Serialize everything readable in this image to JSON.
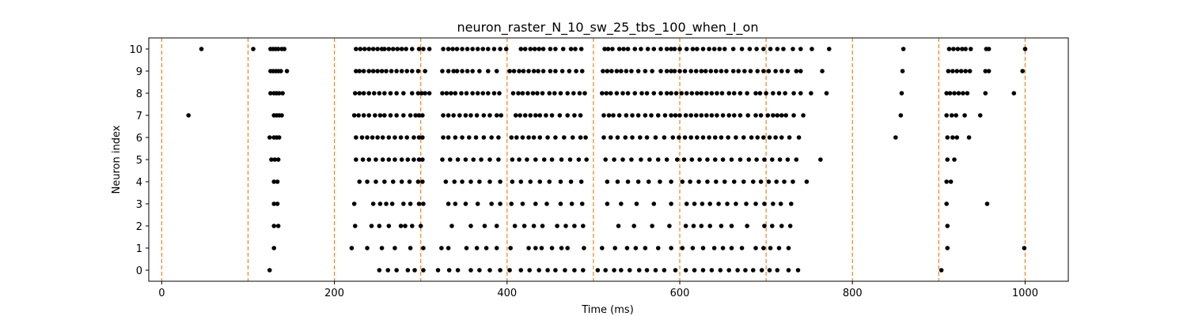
{
  "chart_data": {
    "type": "scatter",
    "title": "neuron_raster_N_10_sw_25_tbs_100_when_I_on",
    "xlabel": "Time (ms)",
    "ylabel": "Neuron index",
    "xlim": [
      -15,
      1050
    ],
    "ylim": [
      -0.5,
      10.5
    ],
    "xticks": [
      0,
      200,
      400,
      600,
      800,
      1000
    ],
    "yticks": [
      0,
      1,
      2,
      3,
      4,
      5,
      6,
      7,
      8,
      9,
      10
    ],
    "grid": false,
    "marker_color": "#000000",
    "vline_color": "#ff7f0e",
    "stimulus_onsets": [
      0,
      100,
      200,
      300,
      400,
      500,
      600,
      700,
      800,
      900,
      1000
    ],
    "spikes": {
      "10": [
        46,
        106,
        126,
        129,
        132,
        135,
        139,
        142,
        225,
        230,
        235,
        240,
        245,
        250,
        255,
        258,
        263,
        268,
        273,
        278,
        283,
        290,
        298,
        303,
        310,
        326,
        332,
        337,
        342,
        348,
        354,
        360,
        366,
        372,
        378,
        385,
        392,
        399,
        416,
        421,
        427,
        432,
        437,
        442,
        450,
        456,
        465,
        474,
        479,
        486,
        513,
        517,
        522,
        530,
        535,
        540,
        548,
        555,
        563,
        570,
        578,
        585,
        590,
        594,
        600,
        608,
        615,
        620,
        627,
        634,
        640,
        646,
        652,
        662,
        672,
        681,
        689,
        697,
        705,
        713,
        720,
        731,
        740,
        753,
        773,
        859,
        912,
        917,
        922,
        927,
        931,
        937,
        955,
        958,
        1000
      ],
      "9": [
        126,
        129,
        132,
        135,
        138,
        145,
        225,
        229,
        234,
        240,
        245,
        250,
        255,
        260,
        266,
        272,
        278,
        284,
        290,
        297,
        305,
        325,
        332,
        338,
        342,
        348,
        354,
        360,
        368,
        378,
        388,
        403,
        408,
        414,
        419,
        425,
        431,
        436,
        442,
        450,
        456,
        464,
        472,
        480,
        487,
        511,
        516,
        521,
        527,
        532,
        538,
        544,
        552,
        560,
        568,
        578,
        585,
        590,
        594,
        600,
        606,
        613,
        619,
        625,
        630,
        636,
        642,
        648,
        654,
        662,
        668,
        675,
        682,
        690,
        697,
        703,
        711,
        718,
        725,
        735,
        740,
        765,
        858,
        911,
        916,
        921,
        926,
        931,
        936,
        954,
        958,
        997
      ],
      "8": [
        126,
        130,
        133,
        136,
        140,
        224,
        229,
        234,
        240,
        246,
        252,
        258,
        265,
        272,
        280,
        290,
        297,
        301,
        305,
        310,
        325,
        330,
        335,
        340,
        347,
        353,
        360,
        366,
        372,
        378,
        385,
        391,
        407,
        413,
        418,
        424,
        430,
        435,
        441,
        449,
        455,
        462,
        470,
        477,
        484,
        490,
        510,
        515,
        520,
        527,
        534,
        540,
        548,
        556,
        562,
        570,
        578,
        585,
        590,
        596,
        602,
        608,
        614,
        620,
        625,
        631,
        637,
        643,
        649,
        657,
        663,
        670,
        678,
        688,
        693,
        700,
        708,
        715,
        722,
        732,
        740,
        752,
        770,
        857,
        909,
        913,
        918,
        923,
        928,
        933,
        954,
        987
      ],
      "7": [
        31,
        130,
        133,
        136,
        139,
        223,
        228,
        234,
        240,
        247,
        253,
        258,
        265,
        272,
        280,
        288,
        294,
        298,
        302,
        326,
        332,
        338,
        345,
        352,
        358,
        365,
        373,
        380,
        388,
        393,
        410,
        415,
        421,
        427,
        433,
        438,
        445,
        452,
        461,
        470,
        478,
        485,
        512,
        518,
        523,
        530,
        538,
        545,
        552,
        560,
        567,
        575,
        583,
        590,
        595,
        600,
        607,
        613,
        619,
        625,
        631,
        637,
        643,
        650,
        657,
        663,
        670,
        679,
        688,
        694,
        702,
        708,
        713,
        718,
        723,
        732,
        743,
        856,
        909,
        915,
        920,
        930,
        948
      ],
      "6": [
        125,
        130,
        133,
        136,
        225,
        232,
        238,
        244,
        250,
        256,
        263,
        270,
        277,
        284,
        292,
        298,
        302,
        326,
        332,
        340,
        348,
        356,
        364,
        373,
        382,
        390,
        405,
        411,
        418,
        425,
        431,
        438,
        447,
        456,
        466,
        476,
        485,
        491,
        512,
        520,
        528,
        537,
        545,
        554,
        562,
        572,
        582,
        592,
        599,
        606,
        613,
        620,
        627,
        634,
        641,
        648,
        656,
        665,
        674,
        683,
        690,
        697,
        704,
        711,
        718,
        727,
        738,
        850,
        910,
        916,
        921,
        935
      ],
      "5": [
        127,
        131,
        135,
        225,
        233,
        240,
        248,
        256,
        263,
        270,
        278,
        285,
        292,
        298,
        302,
        325,
        334,
        343,
        352,
        361,
        370,
        380,
        390,
        406,
        414,
        423,
        433,
        443,
        452,
        463,
        473,
        483,
        492,
        514,
        524,
        534,
        544,
        555,
        565,
        575,
        585,
        597,
        605,
        614,
        623,
        632,
        641,
        650,
        660,
        670,
        680,
        689,
        698,
        707,
        716,
        725,
        735,
        763,
        910,
        918
      ],
      "4": [
        130,
        134,
        229,
        238,
        248,
        258,
        268,
        278,
        287,
        297,
        302,
        329,
        339,
        348,
        358,
        368,
        380,
        392,
        406,
        416,
        427,
        438,
        449,
        462,
        474,
        486,
        516,
        528,
        540,
        552,
        564,
        577,
        590,
        603,
        612,
        622,
        632,
        642,
        652,
        663,
        674,
        685,
        694,
        703,
        712,
        721,
        731,
        747,
        909,
        914
      ],
      "3": [
        130,
        134,
        223,
        245,
        253,
        260,
        267,
        280,
        288,
        298,
        303,
        332,
        340,
        352,
        366,
        382,
        392,
        405,
        418,
        433,
        446,
        462,
        475,
        487,
        516,
        532,
        550,
        570,
        590,
        608,
        617,
        626,
        635,
        645,
        655,
        665,
        677,
        688,
        698,
        708,
        717,
        729,
        909,
        956
      ],
      "2": [
        130,
        135,
        224,
        243,
        252,
        263,
        277,
        282,
        290,
        300,
        336,
        358,
        374,
        388,
        409,
        420,
        431,
        441,
        458,
        468,
        478,
        488,
        529,
        547,
        568,
        588,
        607,
        616,
        625,
        635,
        648,
        660,
        678,
        698,
        707,
        718,
        728,
        910
      ],
      "1": [
        130,
        220,
        238,
        255,
        270,
        288,
        303,
        324,
        332,
        353,
        365,
        376,
        388,
        404,
        425,
        433,
        440,
        452,
        463,
        470,
        489,
        510,
        525,
        539,
        549,
        560,
        575,
        590,
        603,
        615,
        627,
        640,
        650,
        660,
        672,
        688,
        697,
        705,
        715,
        726,
        910,
        999
      ],
      "0": [
        125,
        252,
        262,
        272,
        285,
        293,
        303,
        320,
        333,
        343,
        358,
        368,
        380,
        392,
        403,
        416,
        426,
        437,
        447,
        456,
        467,
        478,
        488,
        505,
        514,
        524,
        532,
        542,
        553,
        562,
        572,
        582,
        595,
        607,
        617,
        627,
        637,
        647,
        657,
        667,
        676,
        685,
        695,
        704,
        713,
        726,
        737,
        903
      ]
    }
  }
}
